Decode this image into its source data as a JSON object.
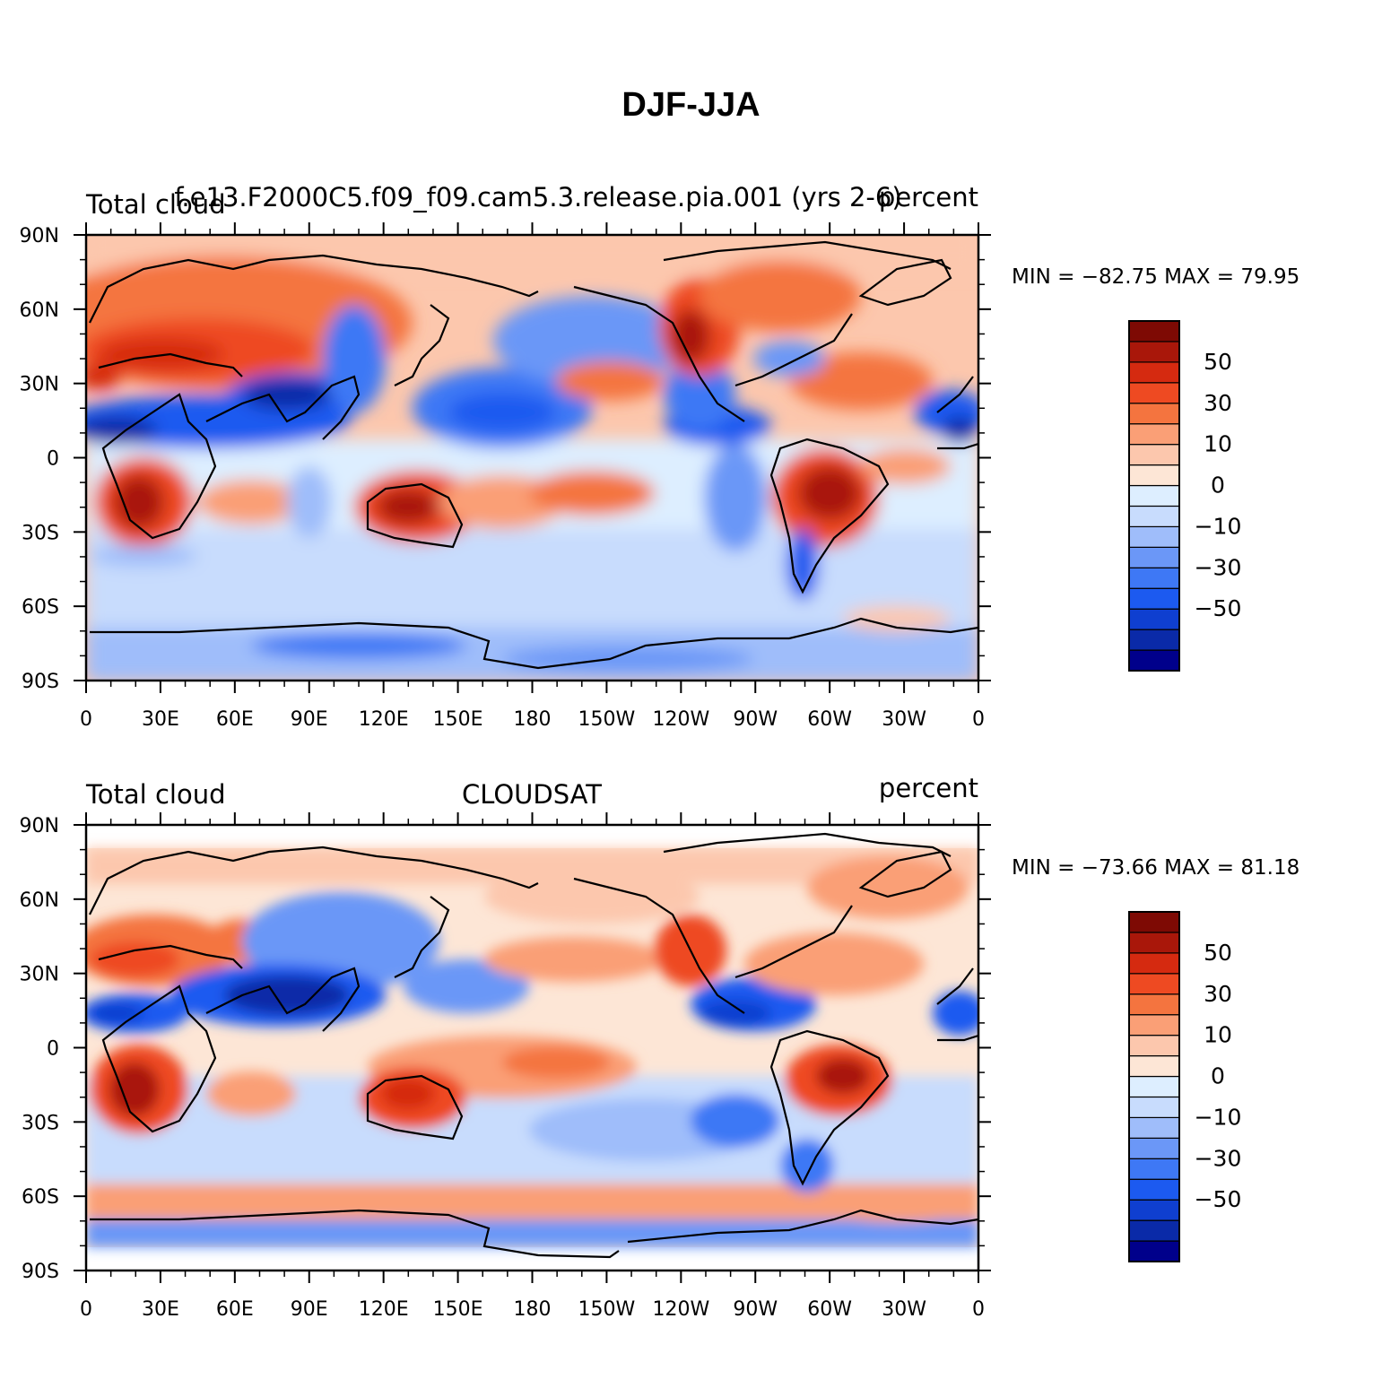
{
  "title": "DJF-JJA",
  "colors": {
    "levels": [
      "#00008b",
      "#0a2aa8",
      "#0f3fd0",
      "#1c5af0",
      "#3e78f5",
      "#6b97f7",
      "#9fbdfa",
      "#c8dcfd",
      "#ddeeff",
      "#fde6d6",
      "#fcc7ad",
      "#fa9f76",
      "#f4743f",
      "#ee4a22",
      "#d52a10",
      "#a9170a",
      "#7e0a04"
    ]
  },
  "chart_data": [
    {
      "type": "heatmap",
      "name": "top-panel",
      "left_label": "Total cloud",
      "center_label": "f.e13.F2000C5.f09_f09.cam5.3.release.pia.001 (yrs 2-6)",
      "right_label": "percent",
      "stats": "MIN = −82.75 MAX =  79.95",
      "x_ticks": [
        "0",
        "30E",
        "60E",
        "90E",
        "120E",
        "150E",
        "180",
        "150W",
        "120W",
        "90W",
        "60W",
        "30W",
        "0"
      ],
      "y_ticks": [
        "90N",
        "60N",
        "30N",
        "0",
        "30S",
        "60S",
        "90S"
      ],
      "colorbar_labels": [
        "50",
        "30",
        "10",
        "0",
        "−10",
        "−30",
        "−50"
      ],
      "data_coverage_lat": [
        -90,
        90
      ],
      "min": -82.75,
      "max": 79.95
    },
    {
      "type": "heatmap",
      "name": "bottom-panel",
      "left_label": "Total cloud",
      "center_label": "CLOUDSAT",
      "right_label": "percent",
      "stats": "MIN = −73.66 MAX =  81.18",
      "x_ticks": [
        "0",
        "30E",
        "60E",
        "90E",
        "120E",
        "150E",
        "180",
        "150W",
        "120W",
        "90W",
        "60W",
        "30W",
        "0"
      ],
      "y_ticks": [
        "90N",
        "60N",
        "30N",
        "0",
        "30S",
        "60S",
        "90S"
      ],
      "colorbar_labels": [
        "50",
        "30",
        "10",
        "0",
        "−10",
        "−30",
        "−50"
      ],
      "data_coverage_lat": [
        -82,
        82
      ],
      "min": -73.66,
      "max": 81.18
    }
  ]
}
